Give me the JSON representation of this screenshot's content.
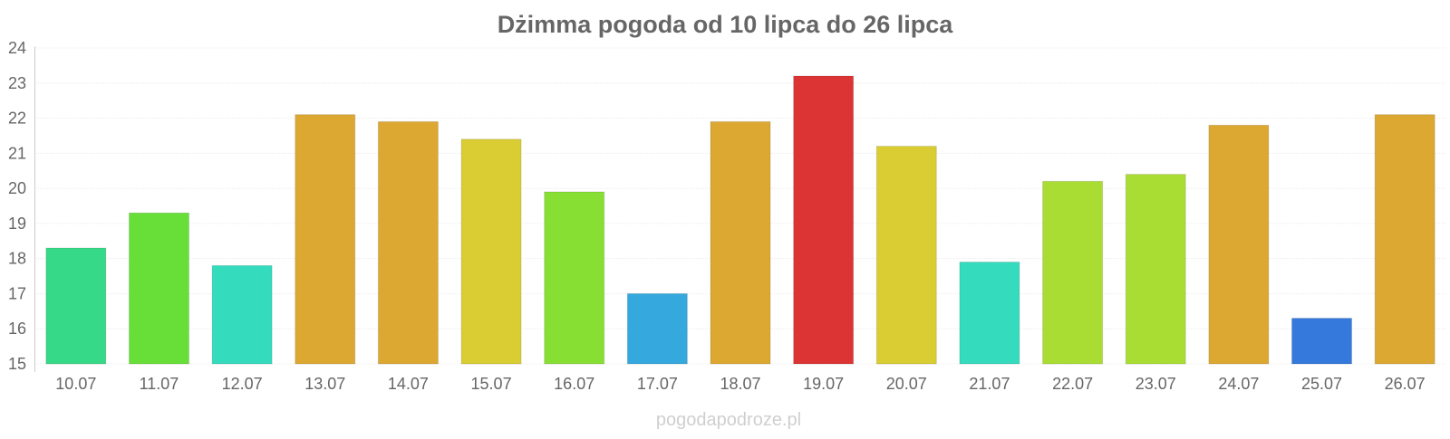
{
  "chart_data": {
    "type": "bar",
    "title": "Dżimma pogoda od 10 lipca do 26 lipca",
    "xlabel": "",
    "ylabel": "",
    "categories": [
      "10.07",
      "11.07",
      "12.07",
      "13.07",
      "14.07",
      "15.07",
      "16.07",
      "17.07",
      "18.07",
      "19.07",
      "20.07",
      "21.07",
      "22.07",
      "23.07",
      "24.07",
      "25.07",
      "26.07"
    ],
    "values": [
      18.3,
      19.3,
      17.8,
      22.1,
      21.9,
      21.4,
      19.9,
      17.0,
      21.9,
      23.2,
      21.2,
      17.9,
      20.2,
      20.4,
      21.8,
      16.3,
      22.1
    ],
    "colors": [
      "#35d987",
      "#68de38",
      "#35dbbd",
      "#dca832",
      "#dca832",
      "#dacd33",
      "#88df34",
      "#35a9dd",
      "#dca832",
      "#dc3434",
      "#dacd33",
      "#35dbbd",
      "#aadd34",
      "#aadd34",
      "#dca832",
      "#3579dd",
      "#dca832"
    ],
    "ylim": [
      15,
      24
    ],
    "yticks": [
      "15",
      "16",
      "17",
      "18",
      "19",
      "20",
      "21",
      "22",
      "23",
      "24"
    ],
    "grid": true,
    "legend": "none"
  },
  "watermark": "pogodapodroze.pl"
}
